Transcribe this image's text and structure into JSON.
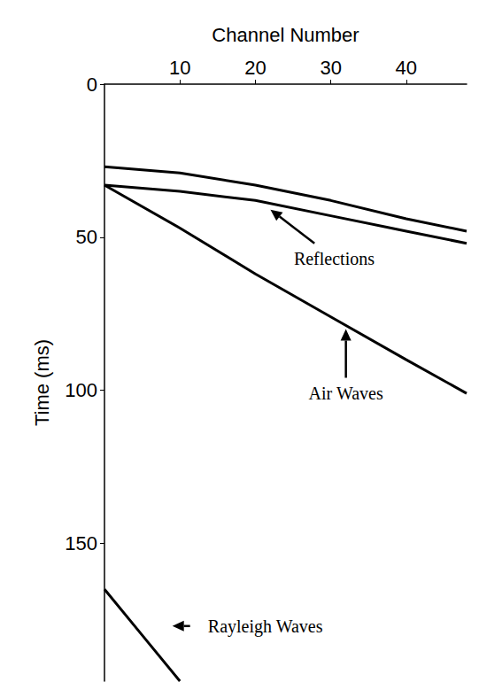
{
  "chart_data": {
    "type": "line",
    "x_label": "Channel Number",
    "y_label": "Time (ms)",
    "xlim": [
      0,
      48
    ],
    "xticks": [
      10,
      20,
      30,
      40
    ],
    "ylim": [
      0,
      195
    ],
    "yticks": [
      0,
      50,
      100,
      150
    ],
    "grid": false,
    "color": "#000000",
    "line_style": "solid",
    "series": [
      {
        "x": [
          0,
          10,
          20,
          30,
          40,
          48
        ],
        "values": [
          27,
          29,
          33,
          38,
          44,
          48
        ]
      },
      {
        "x": [
          0,
          10,
          20,
          30,
          40,
          48
        ],
        "values": [
          33,
          35,
          38,
          43,
          48,
          52
        ]
      },
      {
        "x": [
          0,
          10,
          20,
          30,
          40,
          48
        ],
        "values": [
          33,
          47,
          62,
          76,
          90,
          101
        ]
      },
      {
        "x": [
          0,
          5,
          10
        ],
        "values": [
          165,
          180,
          195
        ]
      }
    ],
    "annotations": [
      {
        "text": "Reflections",
        "x": 22,
        "y": 41
      },
      {
        "text": "Air Waves",
        "x": 32,
        "y": 80
      },
      {
        "text": "Rayleigh Waves",
        "x": 9,
        "y": 177
      }
    ]
  }
}
